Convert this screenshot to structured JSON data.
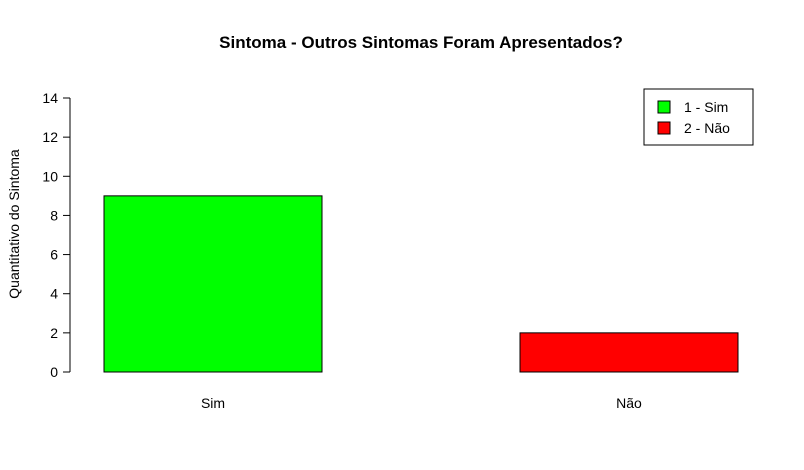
{
  "chart_data": {
    "type": "bar",
    "title": "Sintoma - Outros Sintomas Foram Apresentados?",
    "xlabel": "",
    "ylabel": "Quantitativo do Sintoma",
    "categories": [
      "Sim",
      "Não"
    ],
    "values": [
      9,
      2
    ],
    "colors": [
      "#00ff00",
      "#ff0000"
    ],
    "ylim": [
      0,
      14
    ],
    "yticks": [
      0,
      2,
      4,
      6,
      8,
      10,
      12,
      14
    ],
    "grid": false,
    "legend": {
      "position": "top-right",
      "entries": [
        {
          "label": "1 - Sim",
          "color": "#00ff00"
        },
        {
          "label": "2 - Não",
          "color": "#ff0000"
        }
      ]
    }
  }
}
